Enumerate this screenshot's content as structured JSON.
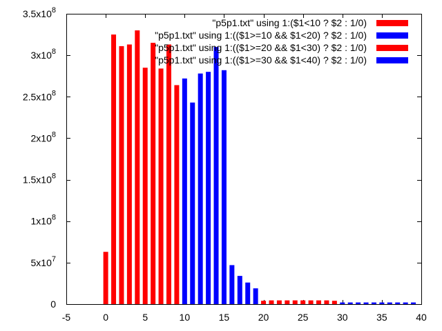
{
  "chart_data": {
    "type": "bar",
    "title": "",
    "xlabel": "",
    "ylabel": "",
    "xlim": [
      -5,
      40
    ],
    "ylim": [
      0,
      350000000
    ],
    "grid": false,
    "legend_position": "top-right",
    "x_ticks": [
      {
        "value": -5,
        "label": "-5"
      },
      {
        "value": 0,
        "label": "0"
      },
      {
        "value": 5,
        "label": "5"
      },
      {
        "value": 10,
        "label": "10"
      },
      {
        "value": 15,
        "label": "15"
      },
      {
        "value": 20,
        "label": "20"
      },
      {
        "value": 25,
        "label": "25"
      },
      {
        "value": 30,
        "label": "30"
      },
      {
        "value": 35,
        "label": "35"
      },
      {
        "value": 40,
        "label": "40"
      }
    ],
    "y_ticks": [
      {
        "value": 0,
        "mant": "0",
        "exp": ""
      },
      {
        "value": 50000000,
        "mant": "5x10",
        "exp": "7"
      },
      {
        "value": 100000000,
        "mant": "1x10",
        "exp": "8"
      },
      {
        "value": 150000000,
        "mant": "1.5x10",
        "exp": "8"
      },
      {
        "value": 200000000,
        "mant": "2x10",
        "exp": "8"
      },
      {
        "value": 250000000,
        "mant": "2.5x10",
        "exp": "8"
      },
      {
        "value": 300000000,
        "mant": "3x10",
        "exp": "8"
      },
      {
        "value": 350000000,
        "mant": "3.5x10",
        "exp": "8"
      }
    ],
    "series": [
      {
        "name": "\"p5p1.txt\" using 1:($1<10 ? $2 : 1/0)",
        "color": "#ff0000",
        "x": [
          0,
          1,
          2,
          3,
          4,
          5,
          6,
          7,
          8,
          9
        ],
        "values": [
          63000000,
          325000000,
          311000000,
          313000000,
          330000000,
          285000000,
          315000000,
          284000000,
          313000000,
          264000000
        ]
      },
      {
        "name": "\"p5p1.txt\" using 1:(($1>=10 && $1<20) ? $2 : 1/0)",
        "color": "#0000ff",
        "x": [
          10,
          11,
          12,
          13,
          14,
          15,
          16,
          17,
          18,
          19
        ],
        "values": [
          272000000,
          243000000,
          278000000,
          280000000,
          310000000,
          282000000,
          47000000,
          34000000,
          26000000,
          19000000
        ]
      },
      {
        "name": "\"p5p1.txt\" using 1:(($1>=20 && $1<30) ? $2 : 1/0)",
        "color": "#ff0000",
        "x": [
          20,
          21,
          22,
          23,
          24,
          25,
          26,
          27,
          28,
          29
        ],
        "values": [
          4000000,
          4500000,
          4500000,
          4500000,
          4500000,
          4500000,
          4500000,
          4500000,
          4500000,
          4000000
        ]
      },
      {
        "name": "\"p5p1.txt\" using 1:(($1>=30 && $1<40) ? $2 : 1/0)",
        "color": "#0000ff",
        "x": [
          30,
          31,
          32,
          33,
          34,
          35,
          36,
          37,
          38,
          39
        ],
        "values": [
          2000000,
          2000000,
          2000000,
          2000000,
          2000000,
          2000000,
          2000000,
          2000000,
          2000000,
          2000000
        ]
      }
    ]
  }
}
